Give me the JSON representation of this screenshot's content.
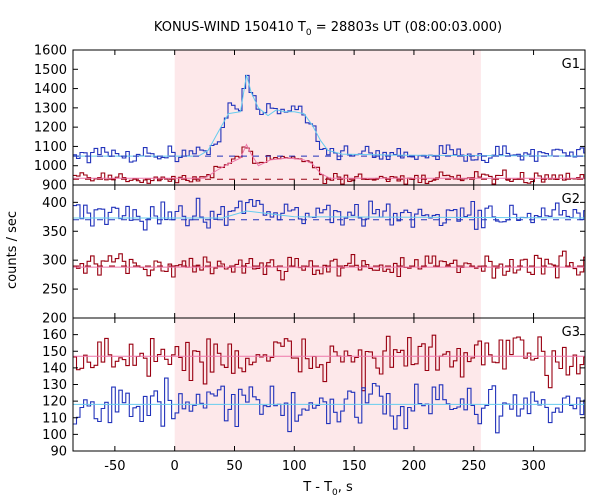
{
  "chart_data": {
    "type": "line",
    "title_main": "KONUS-WIND 150410 T",
    "title_sub": "0",
    "title_rest": " = 28803s UT (08:00:03.000)",
    "xlabel_main": "T - T",
    "xlabel_sub": "0",
    "xlabel_rest": ", s",
    "ylabel": "counts / sec",
    "xlim": [
      -85,
      343
    ],
    "x_ticks": [
      -50,
      0,
      50,
      100,
      150,
      200,
      250,
      300
    ],
    "highlight_interval": [
      0,
      256
    ],
    "colors": {
      "red": "#990011",
      "blue": "#2233bb",
      "cyan_fit": "#66ccee",
      "red_fit": "#ee77aa",
      "highlight": "#fde8ea"
    },
    "panels": [
      {
        "label": "G1",
        "ylim": [
          900,
          1600
        ],
        "y_ticks": [
          900,
          1000,
          1100,
          1200,
          1300,
          1400,
          1500,
          1600
        ],
        "baselines": [
          {
            "color": "blue",
            "value": 1050,
            "style": "dashed"
          },
          {
            "color": "red",
            "value": 930,
            "style": "dashed"
          }
        ],
        "series": [
          {
            "color": "blue",
            "bin": 2.944,
            "base": 1060,
            "noise": 22,
            "pulse": [
              [
                0,
                0
              ],
              [
                25,
                0
              ],
              [
                32,
                50
              ],
              [
                40,
                140
              ],
              [
                45,
                240
              ],
              [
                55,
                230
              ],
              [
                58,
                310
              ],
              [
                60,
                420
              ],
              [
                63,
                340
              ],
              [
                68,
                250
              ],
              [
                75,
                200
              ],
              [
                80,
                260
              ],
              [
                88,
                220
              ],
              [
                95,
                250
              ],
              [
                100,
                230
              ],
              [
                108,
                230
              ],
              [
                115,
                160
              ],
              [
                120,
                70
              ],
              [
                125,
                30
              ],
              [
                140,
                0
              ]
            ]
          },
          {
            "color": "red",
            "bin": 2.944,
            "base": 935,
            "noise": 15,
            "pulse": [
              [
                0,
                0
              ],
              [
                25,
                0
              ],
              [
                35,
                40
              ],
              [
                45,
                80
              ],
              [
                55,
                110
              ],
              [
                60,
                180
              ],
              [
                64,
                120
              ],
              [
                70,
                70
              ],
              [
                80,
                100
              ],
              [
                90,
                110
              ],
              [
                100,
                120
              ],
              [
                110,
                90
              ],
              [
                118,
                60
              ],
              [
                125,
                0
              ]
            ]
          }
        ],
        "fits": [
          {
            "color": "cyan_fit",
            "points": [
              [
                -85,
                1050
              ],
              [
                20,
                1050
              ],
              [
                28,
                1080
              ],
              [
                35,
                1160
              ],
              [
                45,
                1270
              ],
              [
                55,
                1280
              ],
              [
                60,
                1470
              ],
              [
                64,
                1380
              ],
              [
                70,
                1300
              ],
              [
                78,
                1260
              ],
              [
                85,
                1290
              ],
              [
                92,
                1280
              ],
              [
                100,
                1280
              ],
              [
                108,
                1270
              ],
              [
                115,
                1210
              ],
              [
                122,
                1130
              ],
              [
                128,
                1080
              ],
              [
                140,
                1060
              ],
              [
                180,
                1055
              ],
              [
                343,
                1050
              ]
            ]
          },
          {
            "color": "red_fit",
            "points": [
              [
                -85,
                935
              ],
              [
                25,
                935
              ],
              [
                35,
                975
              ],
              [
                45,
                1010
              ],
              [
                55,
                1040
              ],
              [
                60,
                1110
              ],
              [
                64,
                1060
              ],
              [
                70,
                1000
              ],
              [
                80,
                1030
              ],
              [
                95,
                1040
              ],
              [
                108,
                1030
              ],
              [
                115,
                1010
              ],
              [
                122,
                960
              ],
              [
                130,
                935
              ],
              [
                343,
                935
              ]
            ]
          }
        ]
      },
      {
        "label": "G2",
        "ylim": [
          200,
          430
        ],
        "y_ticks": [
          200,
          250,
          300,
          350,
          400
        ],
        "baselines": [
          {
            "color": "blue",
            "value": 370,
            "style": "dashed"
          },
          {
            "color": "red",
            "value": 290,
            "style": "dashed"
          }
        ],
        "series": [
          {
            "color": "blue",
            "bin": 2.944,
            "base": 378,
            "noise": 11,
            "pulse": [
              [
                0,
                0
              ],
              [
                30,
                0
              ],
              [
                50,
                12
              ],
              [
                60,
                22
              ],
              [
                75,
                10
              ],
              [
                90,
                5
              ],
              [
                110,
                0
              ]
            ]
          },
          {
            "color": "red",
            "bin": 2.944,
            "base": 290,
            "noise": 10,
            "pulse": [
              [
                0,
                0
              ],
              [
                60,
                0
              ]
            ]
          }
        ],
        "fits": [
          {
            "color": "cyan_fit",
            "points": [
              [
                -85,
                373
              ],
              [
                40,
                373
              ],
              [
                60,
                385
              ],
              [
                80,
                380
              ],
              [
                100,
                375
              ],
              [
                343,
                373
              ]
            ]
          },
          {
            "color": "red_fit",
            "points": [
              [
                -85,
                288
              ],
              [
                343,
                288
              ]
            ]
          }
        ]
      },
      {
        "label": "G3",
        "ylim": [
          90,
          170
        ],
        "y_ticks": [
          90,
          100,
          110,
          120,
          130,
          140,
          150,
          160
        ],
        "baselines": [],
        "series": [
          {
            "color": "red",
            "bin": 2.944,
            "base": 146,
            "noise": 7,
            "pulse": [
              [
                0,
                0
              ],
              [
                60,
                0
              ]
            ]
          },
          {
            "color": "blue",
            "bin": 2.944,
            "base": 117,
            "noise": 7,
            "pulse": [
              [
                0,
                0
              ],
              [
                60,
                0
              ]
            ]
          }
        ],
        "fits": [
          {
            "color": "red_fit",
            "points": [
              [
                -85,
                147
              ],
              [
                343,
                147
              ]
            ]
          },
          {
            "color": "cyan_fit",
            "points": [
              [
                -85,
                118
              ],
              [
                343,
                118
              ]
            ]
          }
        ]
      }
    ]
  }
}
